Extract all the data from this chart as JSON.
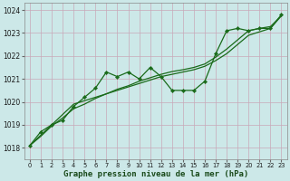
{
  "background_color": "#cce8e8",
  "grid_color": "#b0c8c8",
  "line_color": "#1a6b1a",
  "marker_color": "#1a6b1a",
  "title": "Graphe pression niveau de la mer (hPa)",
  "xlabel_fontsize": 6.5,
  "ylim": [
    1017.5,
    1024.3
  ],
  "xlim": [
    -0.5,
    23.5
  ],
  "yticks": [
    1018,
    1019,
    1020,
    1021,
    1022,
    1023,
    1024
  ],
  "xticks": [
    0,
    1,
    2,
    3,
    4,
    5,
    6,
    7,
    8,
    9,
    10,
    11,
    12,
    13,
    14,
    15,
    16,
    17,
    18,
    19,
    20,
    21,
    22,
    23
  ],
  "series_measured_x": [
    0,
    1,
    2,
    3,
    4,
    5,
    6,
    7,
    8,
    9,
    10,
    11,
    12,
    13,
    14,
    15,
    16,
    17,
    18,
    19,
    20,
    21,
    22,
    23
  ],
  "series_measured_y": [
    1018.1,
    1018.7,
    1019.0,
    1019.2,
    1019.8,
    1020.2,
    1020.6,
    1021.3,
    1021.1,
    1021.3,
    1021.0,
    1021.5,
    1021.1,
    1020.5,
    1020.5,
    1020.5,
    1020.9,
    1022.1,
    1023.1,
    1023.2,
    1023.1,
    1023.2,
    1023.2,
    1023.8
  ],
  "series_trend1_x": [
    0,
    1,
    2,
    3,
    4,
    5,
    6,
    7,
    8,
    9,
    10,
    11,
    12,
    13,
    14,
    15,
    16,
    17,
    18,
    19,
    20,
    21,
    22,
    23
  ],
  "series_trend1_y": [
    1018.1,
    1018.55,
    1019.0,
    1019.45,
    1019.9,
    1020.05,
    1020.2,
    1020.35,
    1020.5,
    1020.65,
    1020.8,
    1020.95,
    1021.1,
    1021.2,
    1021.3,
    1021.4,
    1021.55,
    1021.8,
    1022.1,
    1022.5,
    1022.9,
    1023.05,
    1023.2,
    1023.75
  ],
  "series_trend2_x": [
    0,
    1,
    2,
    3,
    4,
    5,
    6,
    7,
    8,
    9,
    10,
    11,
    12,
    13,
    14,
    15,
    16,
    17,
    18,
    19,
    20,
    21,
    22,
    23
  ],
  "series_trend2_y": [
    1018.1,
    1018.5,
    1018.95,
    1019.3,
    1019.7,
    1019.9,
    1020.15,
    1020.35,
    1020.55,
    1020.7,
    1020.9,
    1021.05,
    1021.2,
    1021.32,
    1021.4,
    1021.5,
    1021.65,
    1021.95,
    1022.3,
    1022.7,
    1023.1,
    1023.2,
    1023.28,
    1023.75
  ]
}
